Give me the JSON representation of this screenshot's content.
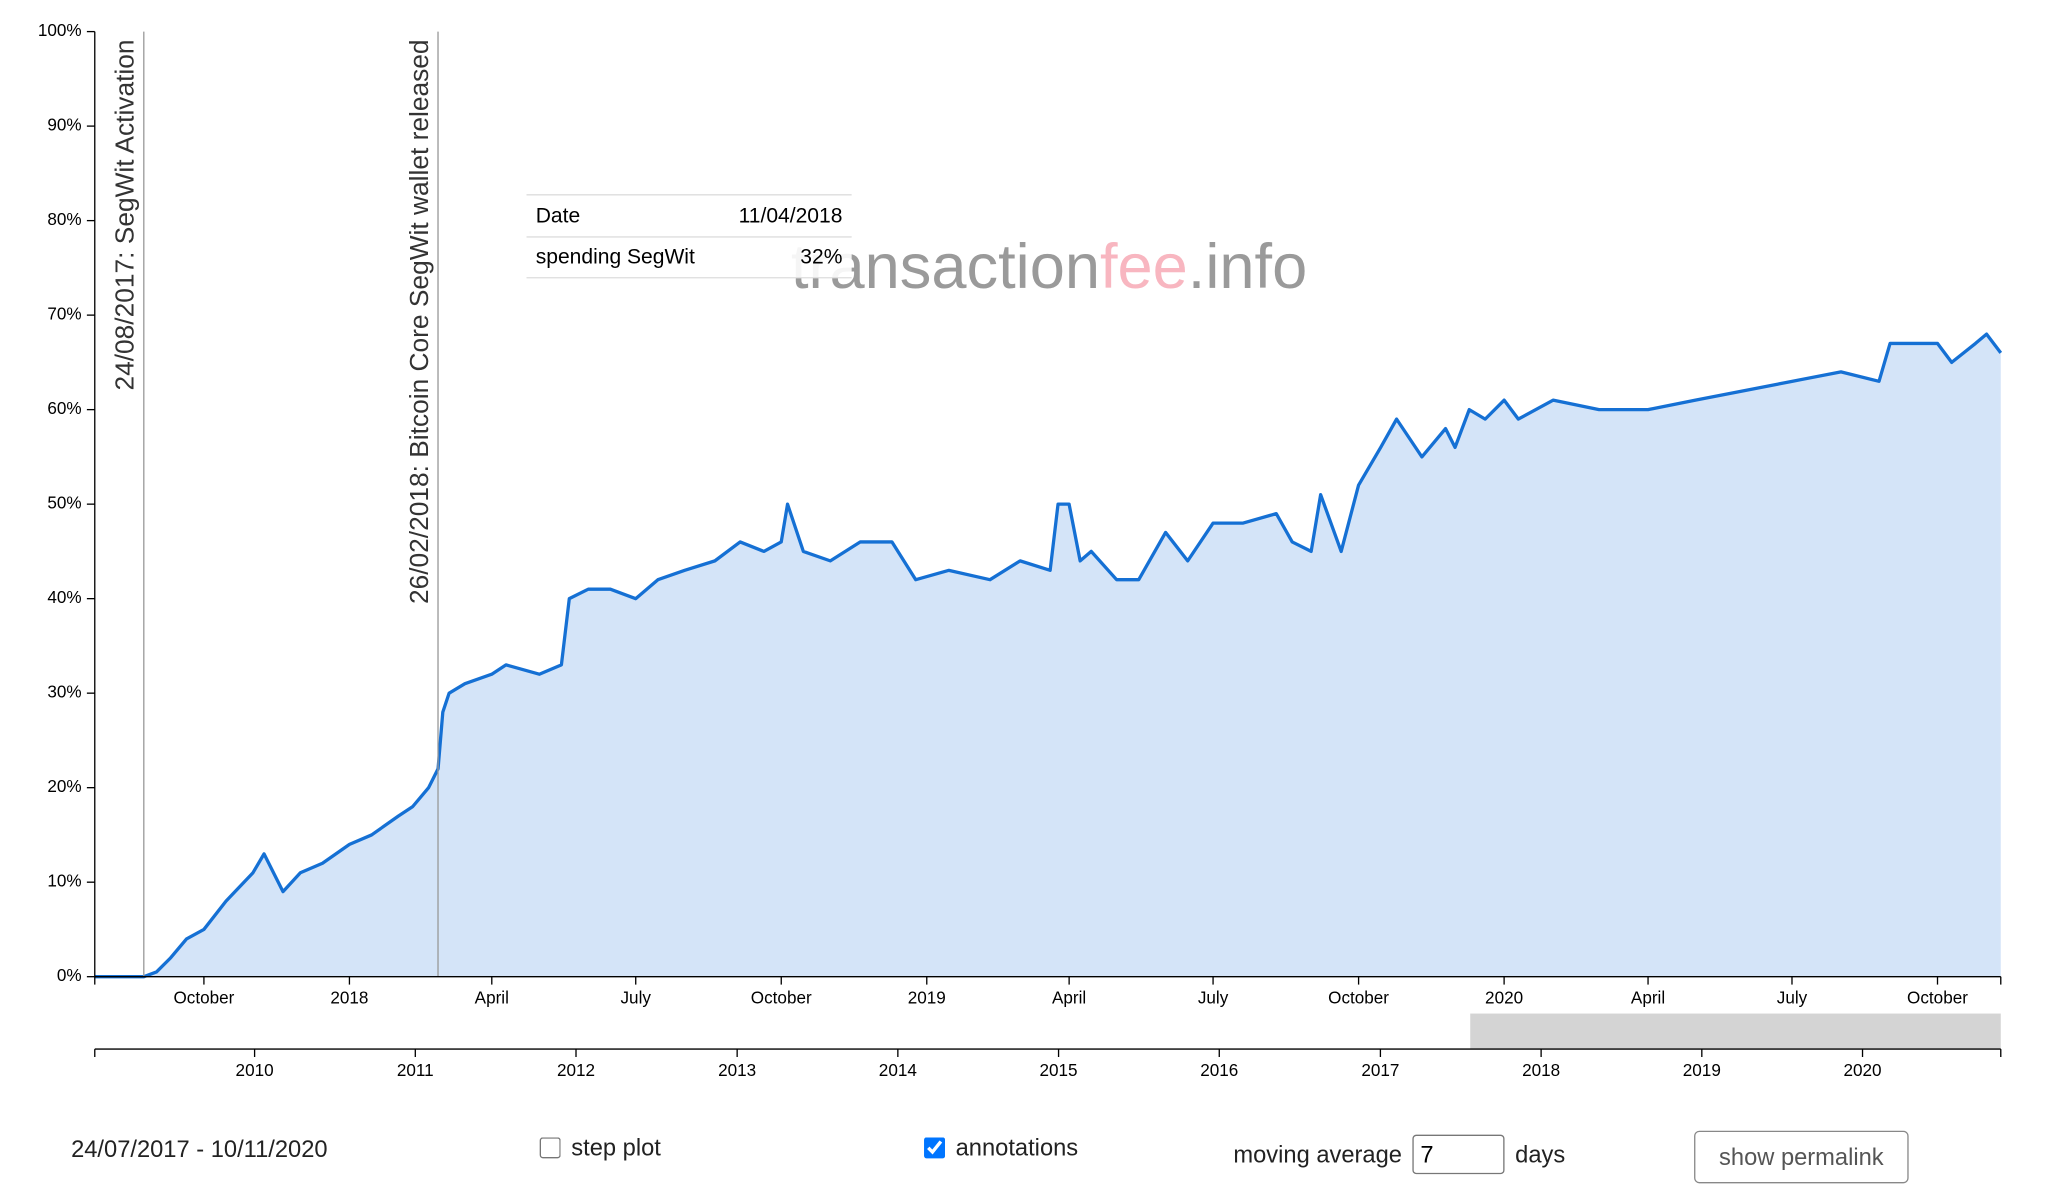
{
  "chart_data": {
    "type": "area",
    "x": [
      "2017-07-24",
      "2017-08-24",
      "2017-09-01",
      "2017-09-10",
      "2017-09-20",
      "2017-10-01",
      "2017-10-15",
      "2017-11-01",
      "2017-11-08",
      "2017-11-20",
      "2017-12-01",
      "2017-12-15",
      "2018-01-01",
      "2018-01-15",
      "2018-02-01",
      "2018-02-10",
      "2018-02-20",
      "2018-02-26",
      "2018-03-01",
      "2018-03-05",
      "2018-03-15",
      "2018-04-01",
      "2018-04-10",
      "2018-05-01",
      "2018-05-15",
      "2018-05-20",
      "2018-06-01",
      "2018-06-15",
      "2018-07-01",
      "2018-07-15",
      "2018-08-01",
      "2018-08-20",
      "2018-09-05",
      "2018-09-20",
      "2018-10-01",
      "2018-10-05",
      "2018-10-15",
      "2018-11-01",
      "2018-11-20",
      "2018-12-10",
      "2018-12-25",
      "2019-01-15",
      "2019-02-10",
      "2019-03-01",
      "2019-03-20",
      "2019-03-25",
      "2019-04-01",
      "2019-04-08",
      "2019-04-15",
      "2019-05-01",
      "2019-05-15",
      "2019-06-01",
      "2019-06-15",
      "2019-07-01",
      "2019-07-20",
      "2019-08-10",
      "2019-08-20",
      "2019-09-01",
      "2019-09-07",
      "2019-09-20",
      "2019-10-01",
      "2019-10-15",
      "2019-10-25",
      "2019-11-10",
      "2019-11-25",
      "2019-12-01",
      "2019-12-10",
      "2019-12-20",
      "2020-01-01",
      "2020-01-10",
      "2020-02-01",
      "2020-03-01",
      "2020-04-01",
      "2020-05-01",
      "2020-06-01",
      "2020-07-01",
      "2020-08-01",
      "2020-08-25",
      "2020-09-01",
      "2020-10-01",
      "2020-10-10",
      "2020-10-25",
      "2020-11-01",
      "2020-11-10"
    ],
    "series": [
      {
        "name": "spending SegWit",
        "color": "#1570d4",
        "fill": "#d4e4f8",
        "values": [
          0,
          0,
          0.5,
          2,
          4,
          5,
          8,
          11,
          13,
          9,
          11,
          12,
          14,
          15,
          17,
          18,
          20,
          22,
          28,
          30,
          31,
          32,
          33,
          32,
          33,
          40,
          41,
          41,
          40,
          42,
          43,
          44,
          46,
          45,
          46,
          50,
          45,
          44,
          46,
          46,
          42,
          43,
          42,
          44,
          43,
          50,
          50,
          44,
          45,
          42,
          42,
          47,
          44,
          48,
          48,
          49,
          46,
          45,
          51,
          45,
          52,
          56,
          59,
          55,
          58,
          56,
          60,
          59,
          61,
          59,
          61,
          60,
          60,
          61,
          62,
          63,
          64,
          63,
          67,
          67,
          65,
          67,
          68,
          66
        ]
      }
    ],
    "xlim": [
      "2017-07-24",
      "2020-11-10"
    ],
    "ylim": [
      0,
      100
    ],
    "yticks": [
      {
        "value": 0,
        "label": "0%"
      },
      {
        "value": 10,
        "label": "10%"
      },
      {
        "value": 20,
        "label": "20%"
      },
      {
        "value": 30,
        "label": "30%"
      },
      {
        "value": 40,
        "label": "40%"
      },
      {
        "value": 50,
        "label": "50%"
      },
      {
        "value": 60,
        "label": "60%"
      },
      {
        "value": 70,
        "label": "70%"
      },
      {
        "value": 80,
        "label": "80%"
      },
      {
        "value": 90,
        "label": "90%"
      },
      {
        "value": 100,
        "label": "100%"
      }
    ],
    "xticks": [
      {
        "value": "2017-10-01",
        "label": "October"
      },
      {
        "value": "2018-01-01",
        "label": "2018"
      },
      {
        "value": "2018-04-01",
        "label": "April"
      },
      {
        "value": "2018-07-01",
        "label": "July"
      },
      {
        "value": "2018-10-01",
        "label": "October"
      },
      {
        "value": "2019-01-01",
        "label": "2019"
      },
      {
        "value": "2019-04-01",
        "label": "April"
      },
      {
        "value": "2019-07-01",
        "label": "July"
      },
      {
        "value": "2019-10-01",
        "label": "October"
      },
      {
        "value": "2020-01-01",
        "label": "2020"
      },
      {
        "value": "2020-04-01",
        "label": "April"
      },
      {
        "value": "2020-07-01",
        "label": "July"
      },
      {
        "value": "2020-10-01",
        "label": "October"
      }
    ],
    "annotations": [
      {
        "x": "2017-08-24",
        "label": "24/08/2017: SegWit Activation"
      },
      {
        "x": "2018-02-26",
        "label": "26/02/2018: Bitcoin Core SegWit wallet released"
      }
    ],
    "tooltip": {
      "date_label": "Date",
      "date": "11/04/2018",
      "value": "32%"
    }
  },
  "navigator": {
    "xlim": [
      "2009-01-03",
      "2020-11-10"
    ],
    "xticks": [
      {
        "value": "2010-01-01",
        "label": "2010"
      },
      {
        "value": "2011-01-01",
        "label": "2011"
      },
      {
        "value": "2012-01-01",
        "label": "2012"
      },
      {
        "value": "2013-01-01",
        "label": "2013"
      },
      {
        "value": "2014-01-01",
        "label": "2014"
      },
      {
        "value": "2015-01-01",
        "label": "2015"
      },
      {
        "value": "2016-01-01",
        "label": "2016"
      },
      {
        "value": "2017-01-01",
        "label": "2017"
      },
      {
        "value": "2018-01-01",
        "label": "2018"
      },
      {
        "value": "2019-01-01",
        "label": "2019"
      },
      {
        "value": "2020-01-01",
        "label": "2020"
      }
    ]
  },
  "watermark": [
    "transaction",
    "fee",
    ".info"
  ],
  "controls": {
    "range": "24/07/2017 - 10/11/2020",
    "step_plot": {
      "label": "step plot",
      "checked": false
    },
    "annotations": {
      "label": "annotations",
      "checked": true
    },
    "moving_average": {
      "label": "moving average",
      "value": "7",
      "unit": "days"
    },
    "permalink": "show permalink"
  }
}
